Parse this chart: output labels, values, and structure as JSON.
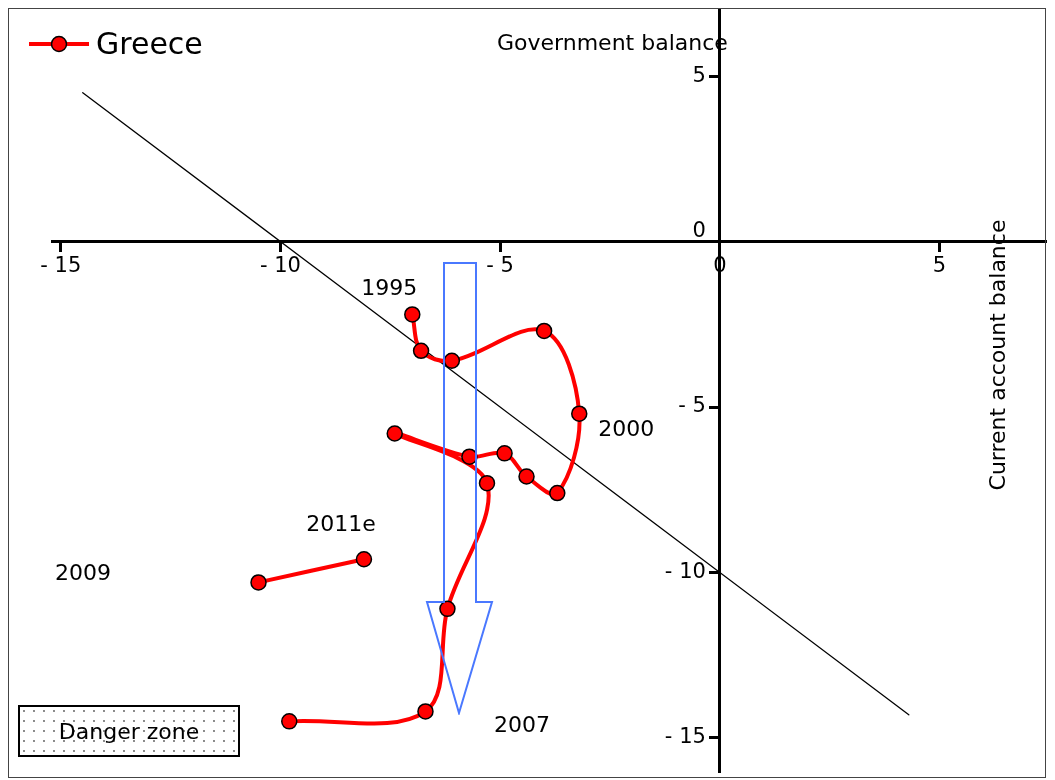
{
  "chart_data": {
    "type": "line",
    "xlabel": "Government balance",
    "ylabel": "Current account balance",
    "legend": "top left",
    "marker": "circle",
    "xlim": [
      -15.2,
      7.4
    ],
    "ylim": [
      -16,
      7
    ],
    "xticks": [
      -15,
      -10,
      -5,
      0,
      5
    ],
    "yticks": [
      5,
      0,
      -5,
      -10,
      -15
    ],
    "series": [
      {
        "name": "Greece",
        "color": "#ff0000",
        "x": [
          -7.0,
          -6.8,
          -6.1,
          -4.0,
          -3.2,
          -3.7,
          -4.4,
          -4.9,
          -5.7,
          -7.4,
          -5.3,
          -6.2,
          -6.7,
          -9.8,
          null,
          -10.5,
          -8.1
        ],
        "values": [
          -2.2,
          -3.3,
          -3.6,
          -2.7,
          -5.2,
          -7.6,
          -7.1,
          -6.4,
          -6.5,
          -5.8,
          -7.3,
          -11.1,
          -14.2,
          -14.5,
          null,
          -10.3,
          -9.6
        ]
      },
      {
        "color": "#000000",
        "marker": "none",
        "x": [
          -14.5,
          4.3
        ],
        "values": [
          4.5,
          -14.3
        ]
      }
    ],
    "annotations": [
      {
        "text": "1995",
        "x": -7.0,
        "y": -2.2
      },
      {
        "text": "2000",
        "x": -3.2,
        "y": -5.2
      },
      {
        "text": "2011e",
        "x": -8.1,
        "y": -9.6
      },
      "2007",
      "2009",
      "Danger zone"
    ]
  }
}
